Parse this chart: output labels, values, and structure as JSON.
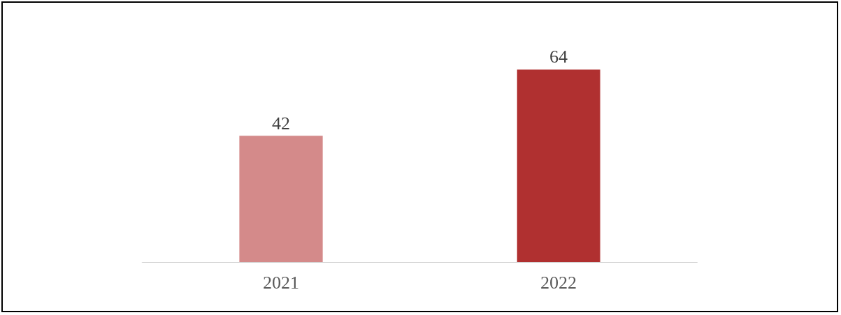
{
  "chart_data": {
    "type": "bar",
    "categories": [
      "2021",
      "2022"
    ],
    "values": [
      42,
      64
    ],
    "colors": [
      "#d48a8a",
      "#b03030"
    ],
    "data_labels": true
  }
}
